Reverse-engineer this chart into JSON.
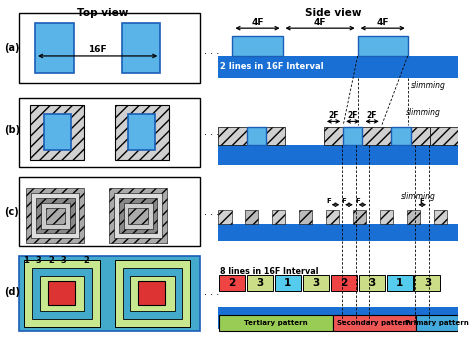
{
  "title_top": "Top view",
  "title_side": "Side view",
  "blue_dark": "#1a5eb8",
  "blue_stripe": "#1a6fd4",
  "blue_light": "#5ab4e8",
  "blue_block": "#5ab4e8",
  "hatch_fc": "#d0d0d0",
  "green_light": "#c8e890",
  "red_box": "#ee4444",
  "cyan_box": "#55ccee",
  "yellow_box": "#ccdd88",
  "label_2lines": "2 lines in 16F Interval",
  "label_8lines": "8 lines in 16F Interval",
  "label_slimming": "slimming",
  "label_4F": "4F",
  "label_2F": "2F",
  "label_F": "F",
  "label_16F": "16F",
  "row_labels": [
    "(a)",
    "(b)",
    "(c)",
    "(d)"
  ],
  "tertiary": "Tertiary pattern",
  "secondary": "Secondary pattern",
  "primary": "Primary pattern",
  "numbers_d": [
    "2",
    "3",
    "1",
    "3",
    "2",
    "3",
    "1",
    "3"
  ],
  "numbers_colors": [
    "#ee4444",
    "#ccdd88",
    "#55ccee",
    "#ccdd88",
    "#ee4444",
    "#ccdd88",
    "#55ccee",
    "#ccdd88"
  ]
}
